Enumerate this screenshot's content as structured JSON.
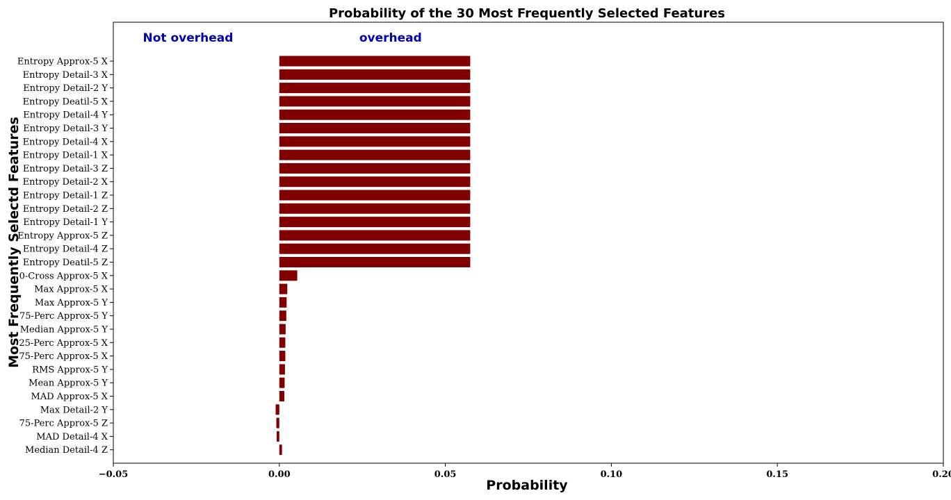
{
  "chart_data": {
    "type": "bar",
    "orientation": "horizontal",
    "title": "Probability of the 30 Most Frequently Selected Features",
    "xlabel": "Probability",
    "ylabel": "Most Frequently Selectd Features",
    "xlim": [
      -0.05,
      0.2
    ],
    "xticks": [
      -0.05,
      0.0,
      0.05,
      0.1,
      0.15,
      0.2
    ],
    "xtick_labels": [
      "−0.05",
      "0.00",
      "0.05",
      "0.10",
      "0.15",
      "0.20"
    ],
    "grid": false,
    "bar_color": "#800000",
    "categories": [
      "Entropy Approx-5 X",
      "Entropy Detail-3 X",
      "Entropy Detail-2 Y",
      "Entropy Deatil-5 X",
      "Entropy Detail-4 Y",
      "Entropy Detail-3 Y",
      "Entropy Detail-4 X",
      "Entropy Detail-1 X",
      "Entropy Detail-3 Z",
      "Entropy Detail-2 X",
      "Entropy Detail-1 Z",
      "Entropy Detail-2 Z",
      "Entropy Detail-1 Y",
      "Entropy Approx-5 Z",
      "Entropy Detail-4 Z",
      "Entropy Deatil-5 Z",
      "0-Cross Approx-5 X",
      "Max Approx-5 X",
      "Max Approx-5 Y",
      "75-Perc Approx-5 Y",
      "Median Approx-5 Y",
      "25-Perc Approx-5 X",
      "75-Perc Approx-5 X",
      "RMS Approx-5 Y",
      "Mean Approx-5 Y",
      "MAD Approx-5 X",
      "Max Detail-2 Y",
      "75-Perc Approx-5 Z",
      "MAD Detail-4 X",
      "Median Detail-4 Z"
    ],
    "values": [
      0.0575,
      0.0575,
      0.0575,
      0.0575,
      0.0575,
      0.0575,
      0.0575,
      0.0575,
      0.0575,
      0.0575,
      0.0575,
      0.0575,
      0.0575,
      0.0575,
      0.0575,
      0.0575,
      0.0054,
      0.0024,
      0.0022,
      0.0021,
      0.0019,
      0.0018,
      0.0018,
      0.0017,
      0.0016,
      0.0015,
      -0.0011,
      -0.0009,
      -0.0008,
      0.0008
    ],
    "annotations": [
      {
        "text": "Not overhead",
        "x": -0.0275,
        "color": "#0000b0"
      },
      {
        "text": "overhead",
        "x": 0.0335,
        "color": "#0000b0"
      }
    ]
  }
}
